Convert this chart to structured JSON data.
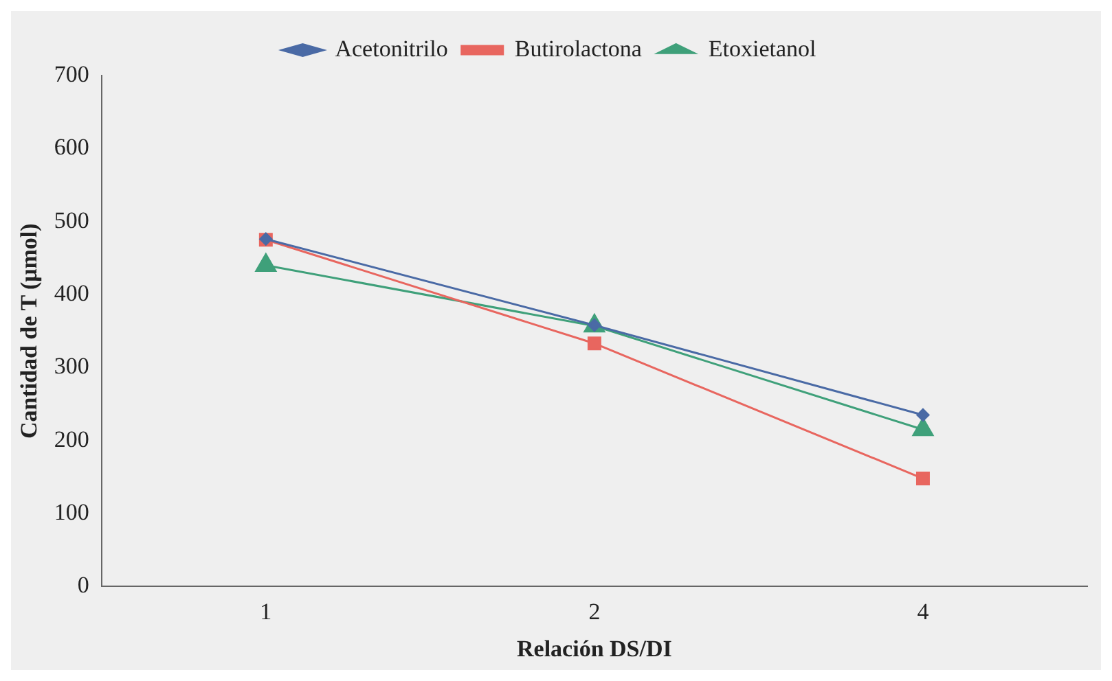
{
  "chart_data": {
    "type": "line",
    "xlabel": "Relación DS/DI",
    "ylabel": "Cantidad de T (μmol)",
    "categories": [
      "1",
      "2",
      "4"
    ],
    "ylim": [
      0,
      700
    ],
    "yticks": [
      0,
      100,
      200,
      300,
      400,
      500,
      600,
      700
    ],
    "grid": false,
    "legend": "top",
    "line_style": "solid",
    "series": [
      {
        "name": "Acetonitrilo",
        "color": "#4a6aa5",
        "marker": "diamond",
        "values": [
          476,
          358,
          235
        ]
      },
      {
        "name": "Butirolactona",
        "color": "#e8665f",
        "marker": "square",
        "values": [
          475,
          333,
          148
        ]
      },
      {
        "name": "Etoxietanol",
        "color": "#3fa07a",
        "marker": "triangle",
        "values": [
          440,
          357,
          215
        ]
      }
    ]
  }
}
